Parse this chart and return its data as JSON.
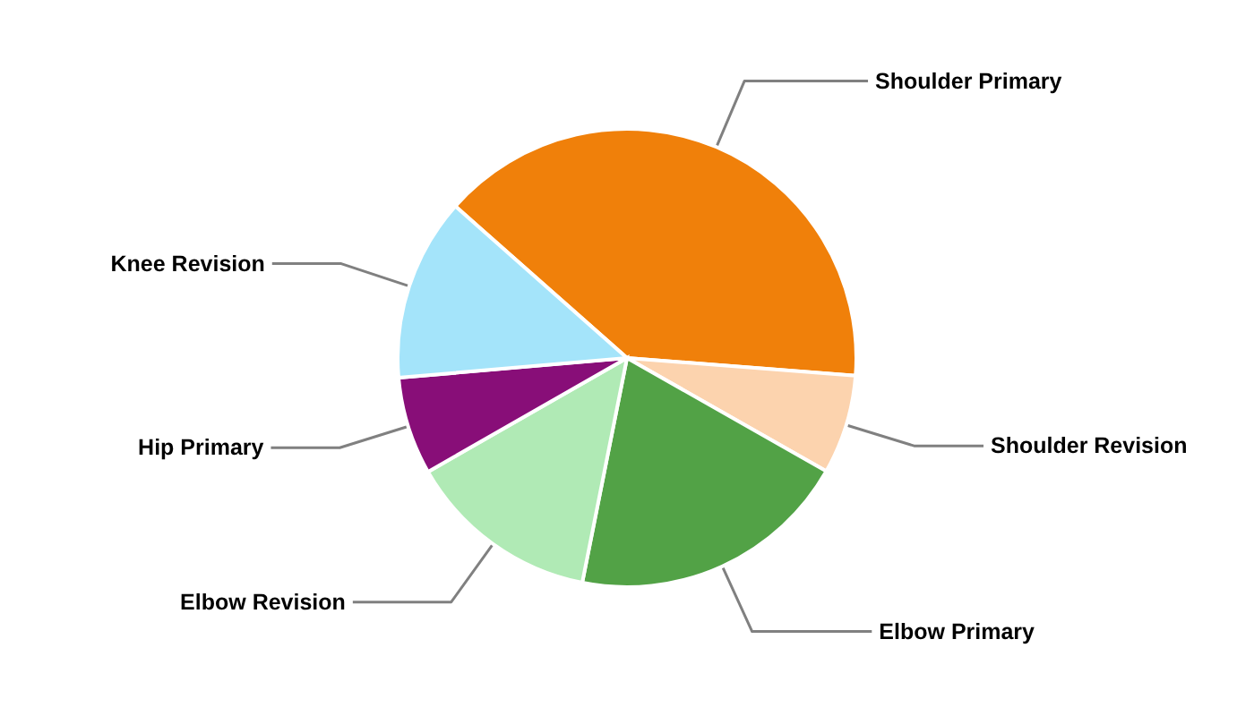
{
  "chart_data": {
    "type": "pie",
    "categories": [
      "Shoulder Primary",
      "Shoulder Revision",
      "Elbow Primary",
      "Elbow Revision",
      "Hip Primary",
      "Knee Revision"
    ],
    "values": [
      39.7,
      7.0,
      19.9,
      13.6,
      6.9,
      12.9
    ],
    "colors": [
      "#f0800a",
      "#fcd3ae",
      "#52a246",
      "#b0eab5",
      "#880e78",
      "#a4e4fa"
    ]
  }
}
